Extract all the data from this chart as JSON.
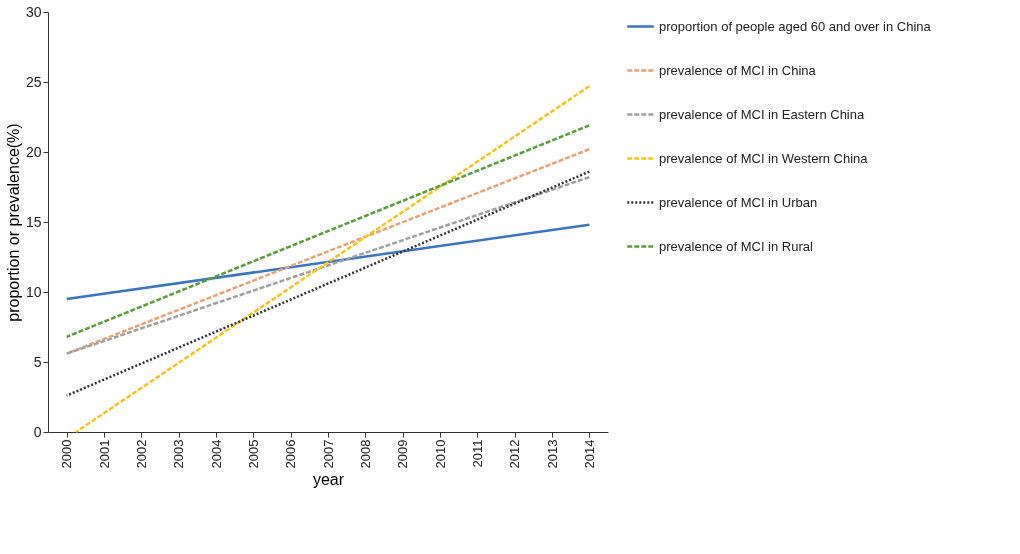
{
  "chart_data": {
    "type": "line",
    "xlabel": "year",
    "ylabel": "proportion or prevalence(%)",
    "x": [
      2000,
      2014
    ],
    "series": [
      {
        "name": "proportion of people aged 60 and over in China",
        "color": "#3a75c4",
        "line_style": "solid",
        "values": [
          9.5,
          14.8
        ]
      },
      {
        "name": "prevalence of MCI in China",
        "color": "#e8a274",
        "line_style": "dashed",
        "values": [
          5.6,
          20.2
        ]
      },
      {
        "name": "prevalence of MCI in Eastern China",
        "color": "#a0a0a0",
        "line_style": "dashed",
        "values": [
          5.6,
          18.2
        ]
      },
      {
        "name": "prevalence of MCI in Western China",
        "color": "#f5c518",
        "line_style": "dashed",
        "x": [
          2000.25,
          2014
        ],
        "values": [
          0,
          24.7
        ]
      },
      {
        "name": "prevalence of MCI in Urban",
        "color": "#333333",
        "line_style": "dotted",
        "values": [
          2.6,
          18.6
        ]
      },
      {
        "name": "prevalence of MCI in Rural",
        "color": "#5a9e3a",
        "line_style": "dashed",
        "values": [
          6.8,
          21.9
        ]
      }
    ],
    "xlim": [
      1999.5,
      2014.5
    ],
    "xticks": [
      2000,
      2001,
      2002,
      2003,
      2004,
      2005,
      2006,
      2007,
      2008,
      2009,
      2010,
      2011,
      2012,
      2013,
      2014
    ],
    "ylim": [
      0,
      30
    ],
    "yticks": [
      0,
      5,
      10,
      15,
      20,
      25,
      30
    ],
    "grid": false,
    "legend": "right",
    "marker": "none"
  }
}
